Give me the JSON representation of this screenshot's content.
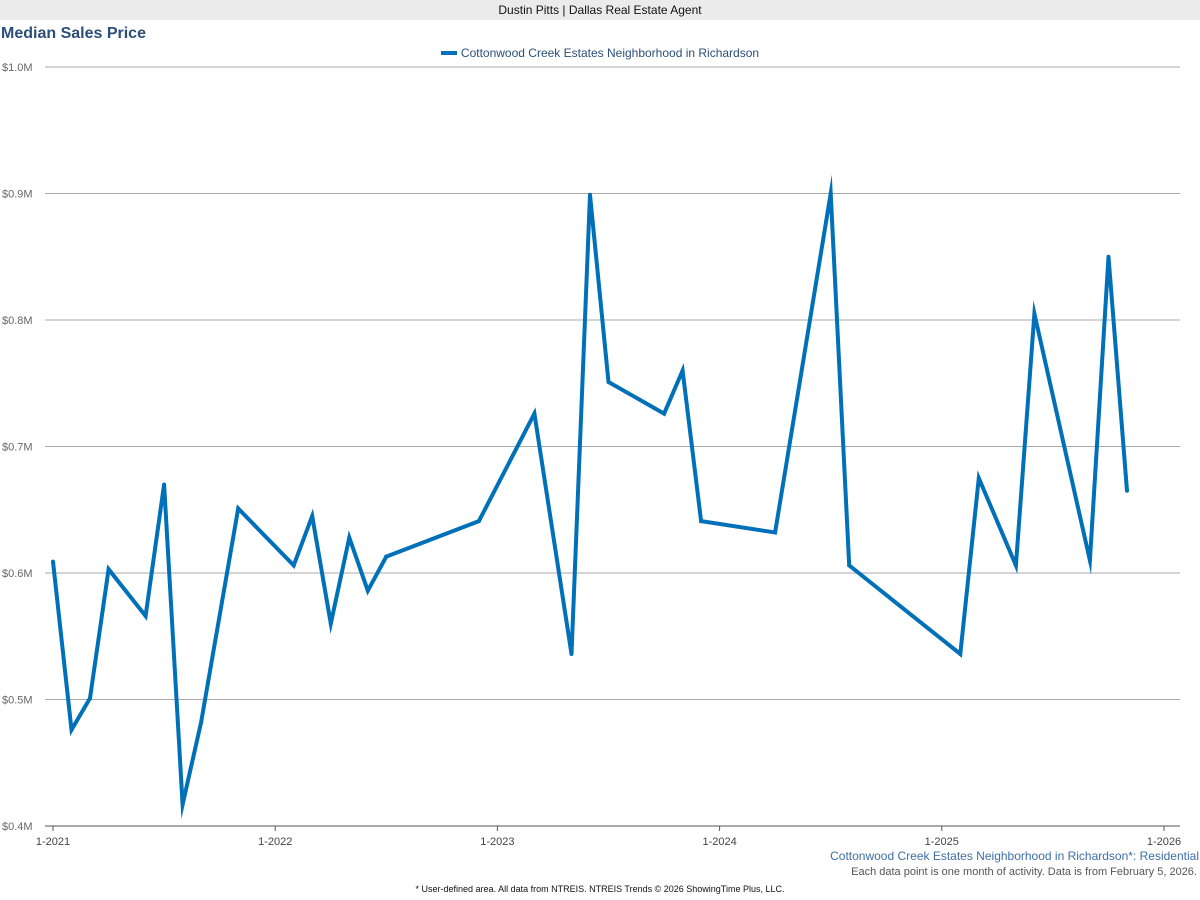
{
  "header": {
    "agent": "Dustin Pitts | Dallas Real Estate Agent"
  },
  "footer": {
    "area_label": "Cottonwood Creek Estates Neighborhood in Richardson*: Residential",
    "note": "Each data point is one month of activity. Data is from February 5, 2026.",
    "disclaimer": "* User-defined area. All data from NTREIS. NTREIS Trends © 2026 ShowingTime Plus, LLC."
  },
  "chart_data": {
    "type": "line",
    "title": "Median Sales Price",
    "legend_position": "top-center",
    "grid": true,
    "ylim": [
      400000,
      1000000
    ],
    "xlim": [
      "2021-01",
      "2026-01"
    ],
    "y_ticks": [
      {
        "value": 1000000,
        "label": "$1.0M"
      },
      {
        "value": 900000,
        "label": "$0.9M"
      },
      {
        "value": 800000,
        "label": "$0.8M"
      },
      {
        "value": 700000,
        "label": "$0.7M"
      },
      {
        "value": 600000,
        "label": "$0.6M"
      },
      {
        "value": 500000,
        "label": "$0.5M"
      },
      {
        "value": 400000,
        "label": "$0.4M"
      }
    ],
    "x_ticks": [
      {
        "value": "2021-01",
        "label": "1-2021"
      },
      {
        "value": "2022-01",
        "label": "1-2022"
      },
      {
        "value": "2023-01",
        "label": "1-2023"
      },
      {
        "value": "2024-01",
        "label": "1-2024"
      },
      {
        "value": "2025-01",
        "label": "1-2025"
      },
      {
        "value": "2026-01",
        "label": "1-2026"
      }
    ],
    "series": [
      {
        "name": "Cottonwood Creek Estates Neighborhood in Richardson",
        "color": "#0070b8",
        "points": [
          [
            "2021-01",
            609000
          ],
          [
            "2021-02",
            476000
          ],
          [
            "2021-03",
            501000
          ],
          [
            "2021-04",
            603000
          ],
          [
            "2021-06",
            566000
          ],
          [
            "2021-07",
            670000
          ],
          [
            "2021-08",
            417000
          ],
          [
            "2021-09",
            482000
          ],
          [
            "2021-11",
            651000
          ],
          [
            "2022-02",
            606000
          ],
          [
            "2022-03",
            645000
          ],
          [
            "2022-04",
            560000
          ],
          [
            "2022-05",
            628000
          ],
          [
            "2022-06",
            586000
          ],
          [
            "2022-07",
            613000
          ],
          [
            "2022-12",
            641000
          ],
          [
            "2023-03",
            726000
          ],
          [
            "2023-05",
            536000
          ],
          [
            "2023-06",
            899000
          ],
          [
            "2023-07",
            751000
          ],
          [
            "2023-10",
            726000
          ],
          [
            "2023-11",
            760000
          ],
          [
            "2023-12",
            641000
          ],
          [
            "2024-04",
            632000
          ],
          [
            "2024-07",
            900000
          ],
          [
            "2024-08",
            606000
          ],
          [
            "2025-02",
            536000
          ],
          [
            "2025-03",
            675000
          ],
          [
            "2025-05",
            606000
          ],
          [
            "2025-06",
            805000
          ],
          [
            "2025-09",
            610000
          ],
          [
            "2025-10",
            850000
          ],
          [
            "2025-11",
            665000
          ]
        ]
      }
    ]
  }
}
